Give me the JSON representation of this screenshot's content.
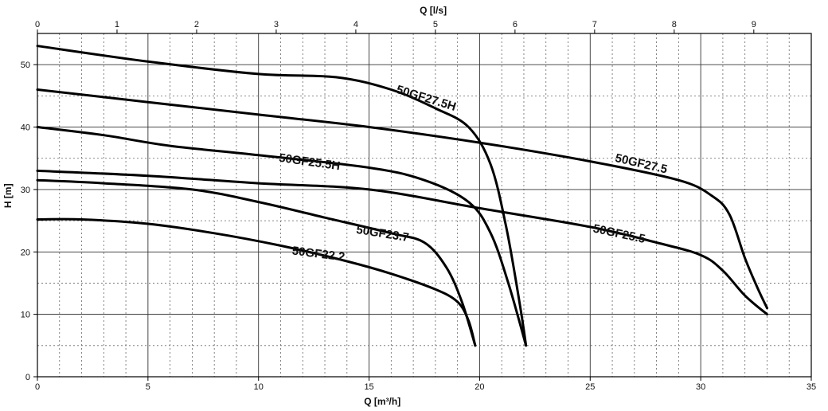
{
  "chart_data": {
    "type": "line",
    "xlabel": "Q [m³/h]",
    "x2label": "Q [l/s]",
    "ylabel": "H [m]",
    "xlim": [
      0,
      35
    ],
    "x2lim": [
      0,
      9.722
    ],
    "ylim": [
      0,
      55
    ],
    "x_ticks": [
      0,
      5,
      10,
      15,
      20,
      25,
      30,
      35
    ],
    "x2_ticks": [
      0,
      1,
      2,
      3,
      4,
      5,
      6,
      7,
      8,
      9
    ],
    "y_ticks": [
      0,
      10,
      20,
      30,
      40,
      50
    ],
    "grid": true,
    "series": [
      {
        "name": "50GF27.5H",
        "x": [
          0,
          5,
          10,
          13.5,
          16,
          18,
          19.5,
          20.5,
          21.2,
          21.8,
          22.1
        ],
        "y": [
          53,
          50.5,
          48.5,
          48,
          46,
          43,
          40,
          34,
          24,
          12,
          5
        ]
      },
      {
        "name": "50GF27.5",
        "x": [
          0,
          5,
          10,
          15,
          20,
          25,
          29,
          30.5,
          31.3,
          32,
          32.6,
          33
        ],
        "y": [
          46,
          44,
          42,
          40,
          37.5,
          34.5,
          31.5,
          29,
          26,
          19,
          14,
          11
        ]
      },
      {
        "name": "50GF25.5H",
        "x": [
          0,
          3,
          6,
          10,
          15,
          17.5,
          19.5,
          20.5,
          21.3,
          22.1
        ],
        "y": [
          40,
          38.7,
          37,
          35.5,
          33.5,
          31.5,
          28,
          23,
          15,
          5
        ]
      },
      {
        "name": "50GF25.5",
        "x": [
          0,
          5,
          10,
          15,
          20,
          25,
          28,
          30,
          31,
          32,
          33
        ],
        "y": [
          33,
          32.2,
          31,
          30,
          27,
          24,
          21.5,
          19.5,
          17,
          13,
          10
        ]
      },
      {
        "name": "50GF23.7",
        "x": [
          0,
          3,
          7,
          10,
          13,
          16,
          17.5,
          18.5,
          19.2,
          19.8
        ],
        "y": [
          31.5,
          31,
          30,
          28,
          25.5,
          23,
          21.5,
          17.5,
          12,
          5
        ]
      },
      {
        "name": "50GF22.2",
        "x": [
          0,
          2,
          5,
          8,
          11,
          14,
          16,
          18,
          19,
          19.5,
          19.8
        ],
        "y": [
          25.2,
          25.2,
          24.5,
          23,
          21,
          18.5,
          16.5,
          14,
          12,
          9,
          5
        ]
      }
    ]
  }
}
